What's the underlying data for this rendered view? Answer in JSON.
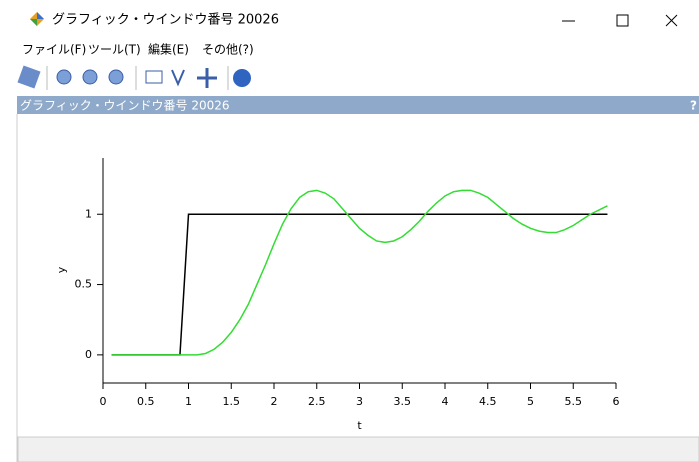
{
  "window": {
    "title": "グラフィック・ウインドウ番号 20026"
  },
  "menu": [
    "ファイル(F)",
    "ツール(T)",
    "編集(E)",
    "その他(?)"
  ],
  "panel": {
    "title": "グラフィック・ウインドウ番号 20026",
    "help": "?"
  },
  "chart_data": {
    "type": "line",
    "xlabel": "t",
    "ylabel": "y",
    "xlim": [
      0,
      6
    ],
    "ylim": [
      -0.2,
      1.4
    ],
    "xticks": [
      0,
      0.5,
      1,
      1.5,
      2,
      2.5,
      3,
      3.5,
      4,
      4.5,
      5,
      5.5,
      6
    ],
    "yticks": [
      0,
      0.5,
      1
    ],
    "series": [
      {
        "color": "#000000",
        "x": [
          0.1,
          0.9,
          1.0,
          5.9
        ],
        "values": [
          0,
          0,
          1,
          1
        ]
      },
      {
        "color": "#33dd33",
        "x": [
          0.1,
          0.2,
          0.3,
          0.4,
          0.5,
          0.6,
          0.7,
          0.8,
          0.9,
          1.0,
          1.1,
          1.2,
          1.3,
          1.4,
          1.5,
          1.6,
          1.7,
          1.8,
          1.9,
          2.0,
          2.1,
          2.2,
          2.3,
          2.4,
          2.5,
          2.6,
          2.7,
          2.8,
          2.9,
          3.0,
          3.1,
          3.2,
          3.3,
          3.4,
          3.5,
          3.6,
          3.7,
          3.8,
          3.9,
          4.0,
          4.1,
          4.2,
          4.3,
          4.4,
          4.5,
          4.6,
          4.7,
          4.8,
          4.9,
          5.0,
          5.1,
          5.2,
          5.3,
          5.4,
          5.5,
          5.6,
          5.7,
          5.8,
          5.9
        ],
        "values": [
          0,
          0,
          0,
          0,
          0,
          0,
          0,
          0,
          0,
          0,
          0,
          0.01,
          0.04,
          0.09,
          0.16,
          0.25,
          0.36,
          0.5,
          0.64,
          0.79,
          0.93,
          1.04,
          1.12,
          1.16,
          1.17,
          1.15,
          1.11,
          1.04,
          0.97,
          0.9,
          0.85,
          0.81,
          0.8,
          0.81,
          0.84,
          0.89,
          0.95,
          1.02,
          1.08,
          1.13,
          1.16,
          1.17,
          1.17,
          1.15,
          1.12,
          1.07,
          1.02,
          0.97,
          0.93,
          0.9,
          0.88,
          0.87,
          0.87,
          0.89,
          0.92,
          0.96,
          1.0,
          1.03,
          1.06
        ]
      }
    ]
  }
}
